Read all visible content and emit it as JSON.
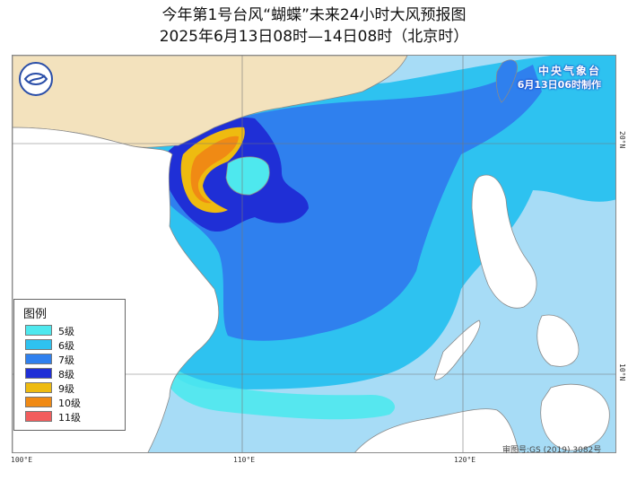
{
  "title": {
    "line1": "今年第1号台风“蝴蝶”未来24小时大风预报图",
    "line2": "2025年6月13日08时—14日08时（北京时）"
  },
  "issuer": {
    "name": "中央气象台",
    "issued": "6月13日06时制作"
  },
  "axes": {
    "longitudes": [
      "100°E",
      "110°E",
      "120°E"
    ],
    "latitudes": [
      "20°N",
      "10°N"
    ]
  },
  "legend": {
    "title": "图例",
    "items": [
      {
        "label": "5级",
        "color": "#4ee8ee"
      },
      {
        "label": "6级",
        "color": "#2ec2f0"
      },
      {
        "label": "7级",
        "color": "#2f80ee"
      },
      {
        "label": "8级",
        "color": "#1f2fd6"
      },
      {
        "label": "9级",
        "color": "#eebb10"
      },
      {
        "label": "10级",
        "color": "#f08a14"
      },
      {
        "label": "11级",
        "color": "#f25d5d"
      }
    ]
  },
  "footnote": "审图号:GS (2019) 3082号",
  "colors": {
    "land_mainland": "#f3e2bd",
    "land_other": "#ffffff",
    "sea": "#a7dcf6",
    "border": "#8a8a8a"
  }
}
